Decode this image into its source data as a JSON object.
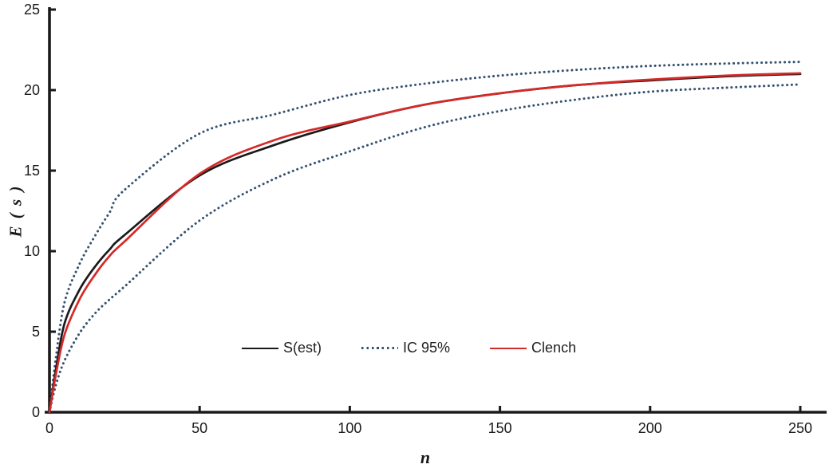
{
  "figure": {
    "background": "#ffffff"
  },
  "legend": {
    "items": [
      {
        "label": "S(est)",
        "color": "#1a1a1a",
        "style": "solid"
      },
      {
        "label": "IC 95%",
        "color": "#35516f",
        "style": "dotted"
      },
      {
        "label": "Clench",
        "color": "#d42a28",
        "style": "solid"
      }
    ]
  },
  "chart_data": {
    "type": "line",
    "title": "",
    "xlabel": "n",
    "ylabel": "E ( s )",
    "xlim": [
      0,
      258
    ],
    "ylim": [
      0,
      25
    ],
    "x_ticks": [
      0,
      50,
      100,
      150,
      200,
      250
    ],
    "y_ticks": [
      0,
      5,
      10,
      15,
      20,
      25
    ],
    "grid": false,
    "legend_position": "inside-bottom-center",
    "x": [
      0,
      2,
      5,
      10,
      15,
      20,
      25,
      50,
      75,
      100,
      125,
      150,
      175,
      200,
      225,
      250
    ],
    "series": [
      {
        "name": "IC 95% upper",
        "color": "#35516f",
        "style": "dotted",
        "values": [
          0,
          3.2,
          6.8,
          9.2,
          10.9,
          12.4,
          13.8,
          17.3,
          18.5,
          19.7,
          20.4,
          20.9,
          21.25,
          21.5,
          21.65,
          21.75
        ]
      },
      {
        "name": "IC 95% lower",
        "color": "#35516f",
        "style": "dotted",
        "values": [
          0,
          1.6,
          3.2,
          4.9,
          6.1,
          7.0,
          7.8,
          11.9,
          14.5,
          16.2,
          17.7,
          18.7,
          19.4,
          19.9,
          20.15,
          20.35
        ]
      },
      {
        "name": "S(est)",
        "color": "#1a1a1a",
        "style": "solid",
        "values": [
          0,
          2.5,
          5.5,
          7.6,
          9.0,
          10.1,
          11.0,
          14.7,
          16.6,
          18.0,
          19.1,
          19.8,
          20.3,
          20.6,
          20.85,
          21.0
        ]
      },
      {
        "name": "Clench",
        "color": "#d42a28",
        "style": "solid",
        "values": [
          0,
          2.2,
          4.8,
          7.0,
          8.5,
          9.7,
          10.6,
          14.8,
          16.9,
          18.05,
          19.1,
          19.8,
          20.3,
          20.65,
          20.9,
          21.05
        ]
      }
    ]
  }
}
